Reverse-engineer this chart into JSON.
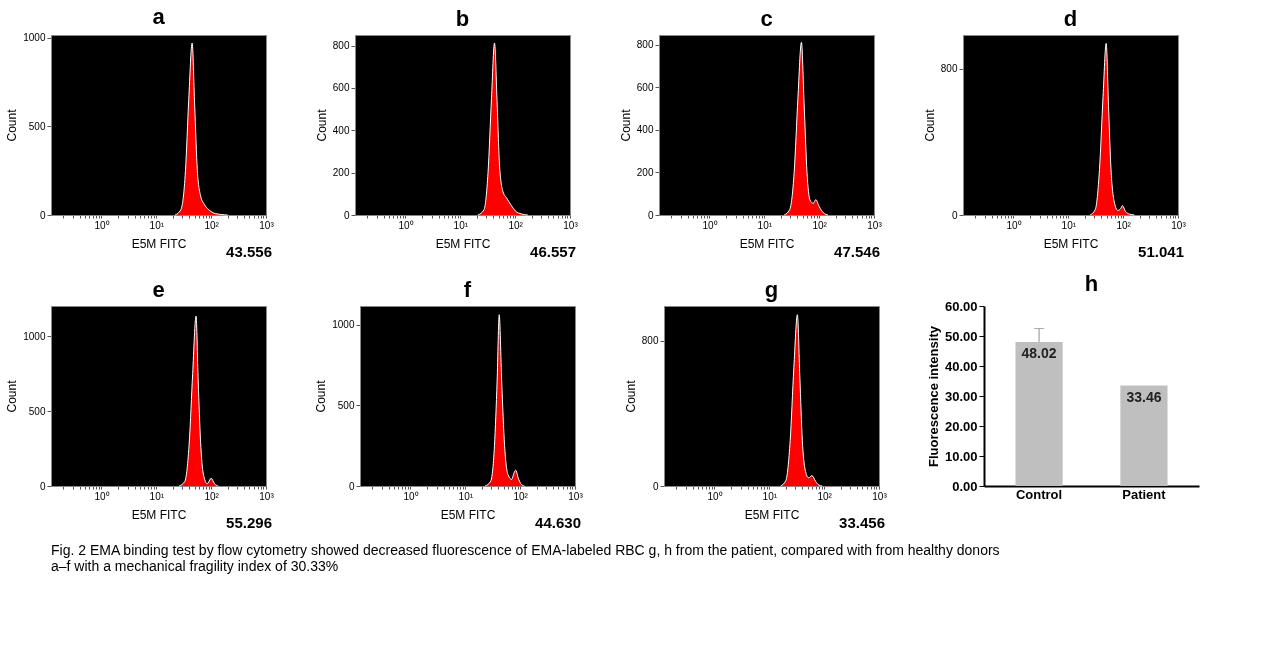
{
  "chart_data": [
    {
      "type": "area",
      "title": "a",
      "xlabel": "E5M FITC",
      "ylabel": "Count",
      "log": "x",
      "grid": false,
      "xlim": [
        0.12,
        1000
      ],
      "xticks": [
        {
          "value": 0.2,
          "label": null
        },
        {
          "value": 0.3,
          "label": null
        },
        {
          "value": 0.4,
          "label": null
        },
        {
          "value": 0.5,
          "label": null
        },
        {
          "value": 0.6,
          "label": null
        },
        {
          "value": 0.7,
          "label": null
        },
        {
          "value": 0.8,
          "label": null
        },
        {
          "value": 0.9,
          "label": null
        },
        {
          "value": 1,
          "label": "10⁰"
        },
        {
          "value": 2,
          "label": null
        },
        {
          "value": 3,
          "label": null
        },
        {
          "value": 4,
          "label": null
        },
        {
          "value": 5,
          "label": null
        },
        {
          "value": 6,
          "label": null
        },
        {
          "value": 7,
          "label": null
        },
        {
          "value": 8,
          "label": null
        },
        {
          "value": 9,
          "label": null
        },
        {
          "value": 10,
          "label": "10¹"
        },
        {
          "value": 20,
          "label": null
        },
        {
          "value": 30,
          "label": null
        },
        {
          "value": 40,
          "label": null
        },
        {
          "value": 50,
          "label": null
        },
        {
          "value": 60,
          "label": null
        },
        {
          "value": 70,
          "label": null
        },
        {
          "value": 80,
          "label": null
        },
        {
          "value": 90,
          "label": null
        },
        {
          "value": 100,
          "label": "10²"
        },
        {
          "value": 200,
          "label": null
        },
        {
          "value": 300,
          "label": null
        },
        {
          "value": 400,
          "label": null
        },
        {
          "value": 500,
          "label": null
        },
        {
          "value": 600,
          "label": null
        },
        {
          "value": 700,
          "label": null
        },
        {
          "value": 800,
          "label": null
        },
        {
          "value": 900,
          "label": null
        },
        {
          "value": 1000,
          "label": "10³"
        }
      ],
      "ylim": [
        0,
        1015
      ],
      "yticks": [
        0,
        500,
        1000
      ],
      "annotations": [
        "43.556"
      ],
      "x": [
        22,
        28,
        34,
        39,
        45,
        50,
        56,
        64,
        75,
        90,
        110,
        150,
        200
      ],
      "series": [
        {
          "color": "#ff0000",
          "values": [
            0,
            30,
            250,
            650,
            970,
            620,
            250,
            110,
            60,
            30,
            12,
            3,
            0
          ]
        }
      ]
    },
    {
      "type": "area",
      "title": "b",
      "xlabel": "E5M FITC",
      "ylabel": "Count",
      "log": "x",
      "grid": false,
      "xlim": [
        0.12,
        1000
      ],
      "xticks": [
        {
          "value": 0.2,
          "label": null
        },
        {
          "value": 0.3,
          "label": null
        },
        {
          "value": 0.4,
          "label": null
        },
        {
          "value": 0.5,
          "label": null
        },
        {
          "value": 0.6,
          "label": null
        },
        {
          "value": 0.7,
          "label": null
        },
        {
          "value": 0.8,
          "label": null
        },
        {
          "value": 0.9,
          "label": null
        },
        {
          "value": 1,
          "label": "10⁰"
        },
        {
          "value": 2,
          "label": null
        },
        {
          "value": 3,
          "label": null
        },
        {
          "value": 4,
          "label": null
        },
        {
          "value": 5,
          "label": null
        },
        {
          "value": 6,
          "label": null
        },
        {
          "value": 7,
          "label": null
        },
        {
          "value": 8,
          "label": null
        },
        {
          "value": 9,
          "label": null
        },
        {
          "value": 10,
          "label": "10¹"
        },
        {
          "value": 20,
          "label": null
        },
        {
          "value": 30,
          "label": null
        },
        {
          "value": 40,
          "label": null
        },
        {
          "value": 50,
          "label": null
        },
        {
          "value": 60,
          "label": null
        },
        {
          "value": 70,
          "label": null
        },
        {
          "value": 80,
          "label": null
        },
        {
          "value": 90,
          "label": null
        },
        {
          "value": 100,
          "label": "10²"
        },
        {
          "value": 200,
          "label": null
        },
        {
          "value": 300,
          "label": null
        },
        {
          "value": 400,
          "label": null
        },
        {
          "value": 500,
          "label": null
        },
        {
          "value": 600,
          "label": null
        },
        {
          "value": 700,
          "label": null
        },
        {
          "value": 800,
          "label": null
        },
        {
          "value": 900,
          "label": null
        },
        {
          "value": 1000,
          "label": "10³"
        }
      ],
      "ylim": [
        0,
        850
      ],
      "yticks": [
        0,
        200,
        400,
        600,
        800
      ],
      "annotations": [
        "46.557"
      ],
      "x": [
        21,
        27,
        32,
        37,
        42,
        47,
        52,
        60,
        70,
        85,
        100,
        130,
        170
      ],
      "series": [
        {
          "color": "#ff0000",
          "values": [
            0,
            25,
            200,
            550,
            812,
            520,
            230,
            110,
            80,
            45,
            20,
            5,
            0
          ]
        }
      ]
    },
    {
      "type": "area",
      "title": "c",
      "xlabel": "E5M FITC",
      "ylabel": "Count",
      "log": "x",
      "grid": false,
      "xlim": [
        0.12,
        1000
      ],
      "xticks": [
        {
          "value": 0.2,
          "label": null
        },
        {
          "value": 0.3,
          "label": null
        },
        {
          "value": 0.4,
          "label": null
        },
        {
          "value": 0.5,
          "label": null
        },
        {
          "value": 0.6,
          "label": null
        },
        {
          "value": 0.7,
          "label": null
        },
        {
          "value": 0.8,
          "label": null
        },
        {
          "value": 0.9,
          "label": null
        },
        {
          "value": 1,
          "label": "10⁰"
        },
        {
          "value": 2,
          "label": null
        },
        {
          "value": 3,
          "label": null
        },
        {
          "value": 4,
          "label": null
        },
        {
          "value": 5,
          "label": null
        },
        {
          "value": 6,
          "label": null
        },
        {
          "value": 7,
          "label": null
        },
        {
          "value": 8,
          "label": null
        },
        {
          "value": 9,
          "label": null
        },
        {
          "value": 10,
          "label": "10¹"
        },
        {
          "value": 20,
          "label": null
        },
        {
          "value": 30,
          "label": null
        },
        {
          "value": 40,
          "label": null
        },
        {
          "value": 50,
          "label": null
        },
        {
          "value": 60,
          "label": null
        },
        {
          "value": 70,
          "label": null
        },
        {
          "value": 80,
          "label": null
        },
        {
          "value": 90,
          "label": null
        },
        {
          "value": 100,
          "label": "10²"
        },
        {
          "value": 200,
          "label": null
        },
        {
          "value": 300,
          "label": null
        },
        {
          "value": 400,
          "label": null
        },
        {
          "value": 500,
          "label": null
        },
        {
          "value": 600,
          "label": null
        },
        {
          "value": 700,
          "label": null
        },
        {
          "value": 800,
          "label": null
        },
        {
          "value": 900,
          "label": null
        },
        {
          "value": 1000,
          "label": "10³"
        }
      ],
      "ylim": [
        0,
        845
      ],
      "yticks": [
        0,
        200,
        400,
        600,
        800
      ],
      "annotations": [
        "47.546"
      ],
      "x": [
        23,
        29,
        35,
        41,
        47.5,
        53,
        60,
        68,
        78,
        87,
        100,
        120,
        145
      ],
      "series": [
        {
          "color": "#ff0000",
          "values": [
            0,
            25,
            200,
            550,
            811,
            530,
            200,
            70,
            55,
            72,
            40,
            10,
            0
          ]
        }
      ]
    },
    {
      "type": "area",
      "title": "d",
      "xlabel": "E5M FITC",
      "ylabel": "Count",
      "log": "x",
      "grid": false,
      "xlim": [
        0.12,
        1000
      ],
      "xticks": [
        {
          "value": 0.2,
          "label": null
        },
        {
          "value": 0.3,
          "label": null
        },
        {
          "value": 0.4,
          "label": null
        },
        {
          "value": 0.5,
          "label": null
        },
        {
          "value": 0.6,
          "label": null
        },
        {
          "value": 0.7,
          "label": null
        },
        {
          "value": 0.8,
          "label": null
        },
        {
          "value": 0.9,
          "label": null
        },
        {
          "value": 1,
          "label": "10⁰"
        },
        {
          "value": 2,
          "label": null
        },
        {
          "value": 3,
          "label": null
        },
        {
          "value": 4,
          "label": null
        },
        {
          "value": 5,
          "label": null
        },
        {
          "value": 6,
          "label": null
        },
        {
          "value": 7,
          "label": null
        },
        {
          "value": 8,
          "label": null
        },
        {
          "value": 9,
          "label": null
        },
        {
          "value": 10,
          "label": "10¹"
        },
        {
          "value": 20,
          "label": null
        },
        {
          "value": 30,
          "label": null
        },
        {
          "value": 40,
          "label": null
        },
        {
          "value": 50,
          "label": null
        },
        {
          "value": 60,
          "label": null
        },
        {
          "value": 70,
          "label": null
        },
        {
          "value": 80,
          "label": null
        },
        {
          "value": 90,
          "label": null
        },
        {
          "value": 100,
          "label": "10²"
        },
        {
          "value": 200,
          "label": null
        },
        {
          "value": 300,
          "label": null
        },
        {
          "value": 400,
          "label": null
        },
        {
          "value": 500,
          "label": null
        },
        {
          "value": 600,
          "label": null
        },
        {
          "value": 700,
          "label": null
        },
        {
          "value": 800,
          "label": null
        },
        {
          "value": 900,
          "label": null
        },
        {
          "value": 1000,
          "label": "10³"
        }
      ],
      "ylim": [
        0,
        985
      ],
      "yticks": [
        0,
        800
      ],
      "annotations": [
        "51.041"
      ],
      "x": [
        25,
        31,
        37,
        43,
        49,
        54,
        60,
        68,
        80,
        90,
        97,
        110,
        130,
        160
      ],
      "series": [
        {
          "color": "#ff0000",
          "values": [
            0,
            30,
            250,
            650,
            939,
            600,
            250,
            80,
            25,
            35,
            51,
            20,
            5,
            0
          ]
        }
      ]
    },
    {
      "type": "area",
      "title": "e",
      "xlabel": "E5M FITC",
      "ylabel": "Count",
      "log": "x",
      "grid": false,
      "xlim": [
        0.12,
        1000
      ],
      "xticks": [
        {
          "value": 0.2,
          "label": null
        },
        {
          "value": 0.3,
          "label": null
        },
        {
          "value": 0.4,
          "label": null
        },
        {
          "value": 0.5,
          "label": null
        },
        {
          "value": 0.6,
          "label": null
        },
        {
          "value": 0.7,
          "label": null
        },
        {
          "value": 0.8,
          "label": null
        },
        {
          "value": 0.9,
          "label": null
        },
        {
          "value": 1,
          "label": "10⁰"
        },
        {
          "value": 2,
          "label": null
        },
        {
          "value": 3,
          "label": null
        },
        {
          "value": 4,
          "label": null
        },
        {
          "value": 5,
          "label": null
        },
        {
          "value": 6,
          "label": null
        },
        {
          "value": 7,
          "label": null
        },
        {
          "value": 8,
          "label": null
        },
        {
          "value": 9,
          "label": null
        },
        {
          "value": 10,
          "label": "10¹"
        },
        {
          "value": 20,
          "label": null
        },
        {
          "value": 30,
          "label": null
        },
        {
          "value": 40,
          "label": null
        },
        {
          "value": 50,
          "label": null
        },
        {
          "value": 60,
          "label": null
        },
        {
          "value": 70,
          "label": null
        },
        {
          "value": 80,
          "label": null
        },
        {
          "value": 90,
          "label": null
        },
        {
          "value": 100,
          "label": "10²"
        },
        {
          "value": 200,
          "label": null
        },
        {
          "value": 300,
          "label": null
        },
        {
          "value": 400,
          "label": null
        },
        {
          "value": 500,
          "label": null
        },
        {
          "value": 600,
          "label": null
        },
        {
          "value": 700,
          "label": null
        },
        {
          "value": 800,
          "label": null
        },
        {
          "value": 900,
          "label": null
        },
        {
          "value": 1000,
          "label": "10³"
        }
      ],
      "ylim": [
        0,
        1200
      ],
      "yticks": [
        0,
        500,
        1000
      ],
      "annotations": [
        "55.296"
      ],
      "x": [
        26,
        33,
        40,
        46,
        53,
        58,
        64,
        72,
        85,
        100,
        115,
        135
      ],
      "series": [
        {
          "color": "#ff0000",
          "values": [
            0,
            30,
            300,
            750,
            1133,
            700,
            300,
            80,
            15,
            52,
            15,
            0
          ]
        }
      ]
    },
    {
      "type": "area",
      "title": "f",
      "xlabel": "E5M FITC",
      "ylabel": "Count",
      "log": "x",
      "grid": false,
      "xlim": [
        0.12,
        1000
      ],
      "xticks": [
        {
          "value": 0.2,
          "label": null
        },
        {
          "value": 0.3,
          "label": null
        },
        {
          "value": 0.4,
          "label": null
        },
        {
          "value": 0.5,
          "label": null
        },
        {
          "value": 0.6,
          "label": null
        },
        {
          "value": 0.7,
          "label": null
        },
        {
          "value": 0.8,
          "label": null
        },
        {
          "value": 0.9,
          "label": null
        },
        {
          "value": 1,
          "label": "10⁰"
        },
        {
          "value": 2,
          "label": null
        },
        {
          "value": 3,
          "label": null
        },
        {
          "value": 4,
          "label": null
        },
        {
          "value": 5,
          "label": null
        },
        {
          "value": 6,
          "label": null
        },
        {
          "value": 7,
          "label": null
        },
        {
          "value": 8,
          "label": null
        },
        {
          "value": 9,
          "label": null
        },
        {
          "value": 10,
          "label": "10¹"
        },
        {
          "value": 20,
          "label": null
        },
        {
          "value": 30,
          "label": null
        },
        {
          "value": 40,
          "label": null
        },
        {
          "value": 50,
          "label": null
        },
        {
          "value": 60,
          "label": null
        },
        {
          "value": 70,
          "label": null
        },
        {
          "value": 80,
          "label": null
        },
        {
          "value": 90,
          "label": null
        },
        {
          "value": 100,
          "label": "10²"
        },
        {
          "value": 200,
          "label": null
        },
        {
          "value": 300,
          "label": null
        },
        {
          "value": 400,
          "label": null
        },
        {
          "value": 500,
          "label": null
        },
        {
          "value": 600,
          "label": null
        },
        {
          "value": 700,
          "label": null
        },
        {
          "value": 800,
          "label": null
        },
        {
          "value": 900,
          "label": null
        },
        {
          "value": 1000,
          "label": "10³"
        }
      ],
      "ylim": [
        0,
        1115
      ],
      "yticks": [
        0,
        500,
        1000
      ],
      "annotations": [
        "44.630"
      ],
      "x": [
        23,
        29,
        34,
        38,
        41.5,
        46,
        52,
        60,
        70,
        77,
        83,
        92,
        105,
        120
      ],
      "series": [
        {
          "color": "#ff0000",
          "values": [
            0,
            30,
            250,
            650,
            1061,
            650,
            250,
            70,
            41,
            80,
            98,
            50,
            10,
            0
          ]
        }
      ]
    },
    {
      "type": "area",
      "title": "g",
      "xlabel": "E5M FITC",
      "ylabel": "Count",
      "log": "x",
      "grid": false,
      "xlim": [
        0.12,
        1000
      ],
      "xticks": [
        {
          "value": 0.2,
          "label": null
        },
        {
          "value": 0.3,
          "label": null
        },
        {
          "value": 0.4,
          "label": null
        },
        {
          "value": 0.5,
          "label": null
        },
        {
          "value": 0.6,
          "label": null
        },
        {
          "value": 0.7,
          "label": null
        },
        {
          "value": 0.8,
          "label": null
        },
        {
          "value": 0.9,
          "label": null
        },
        {
          "value": 1,
          "label": "10⁰"
        },
        {
          "value": 2,
          "label": null
        },
        {
          "value": 3,
          "label": null
        },
        {
          "value": 4,
          "label": null
        },
        {
          "value": 5,
          "label": null
        },
        {
          "value": 6,
          "label": null
        },
        {
          "value": 7,
          "label": null
        },
        {
          "value": 8,
          "label": null
        },
        {
          "value": 9,
          "label": null
        },
        {
          "value": 10,
          "label": "10¹"
        },
        {
          "value": 20,
          "label": null
        },
        {
          "value": 30,
          "label": null
        },
        {
          "value": 40,
          "label": null
        },
        {
          "value": 50,
          "label": null
        },
        {
          "value": 60,
          "label": null
        },
        {
          "value": 70,
          "label": null
        },
        {
          "value": 80,
          "label": null
        },
        {
          "value": 90,
          "label": null
        },
        {
          "value": 100,
          "label": "10²"
        },
        {
          "value": 200,
          "label": null
        },
        {
          "value": 300,
          "label": null
        },
        {
          "value": 400,
          "label": null
        },
        {
          "value": 500,
          "label": null
        },
        {
          "value": 600,
          "label": null
        },
        {
          "value": 700,
          "label": null
        },
        {
          "value": 800,
          "label": null
        },
        {
          "value": 900,
          "label": null
        },
        {
          "value": 1000,
          "label": "10³"
        }
      ],
      "ylim": [
        0,
        990
      ],
      "yticks": [
        0,
        800
      ],
      "annotations": [
        "33.456"
      ],
      "x": [
        16,
        20,
        24,
        28,
        32.5,
        36,
        40,
        45,
        52,
        60,
        70,
        80,
        92
      ],
      "series": [
        {
          "color": "#ff0000",
          "values": [
            0,
            30,
            250,
            650,
            942,
            600,
            250,
            90,
            45,
            57,
            25,
            5,
            0
          ]
        }
      ]
    },
    {
      "type": "bar",
      "title": "h",
      "ylabel": "Fluorescence intensity",
      "grid": false,
      "categories": [
        "Control",
        "Patient"
      ],
      "values": [
        48.02,
        33.46
      ],
      "colors": [
        "#bfbfbf",
        "#bfbfbf"
      ],
      "errors": [
        [
          48.02,
          52.5
        ],
        null
      ],
      "data_labels": true,
      "ylim": [
        0,
        60
      ],
      "yticks": [
        {
          "value": 0,
          "label": "0.00"
        },
        {
          "value": 10,
          "label": "10.00"
        },
        {
          "value": 20,
          "label": "20.00"
        },
        {
          "value": 30,
          "label": "30.00"
        },
        {
          "value": 40,
          "label": "40.00"
        },
        {
          "value": 50,
          "label": "50.00"
        },
        {
          "value": 60,
          "label": "60.00"
        }
      ],
      "annotations": [
        "Fig. 2 EMA binding test by flow cytometry showed decreased fluorescence of EMA-labeled RBC g, h from the patient, compared with from healthy donors a–f with a mechanical fragility index of 30.33%"
      ]
    }
  ]
}
